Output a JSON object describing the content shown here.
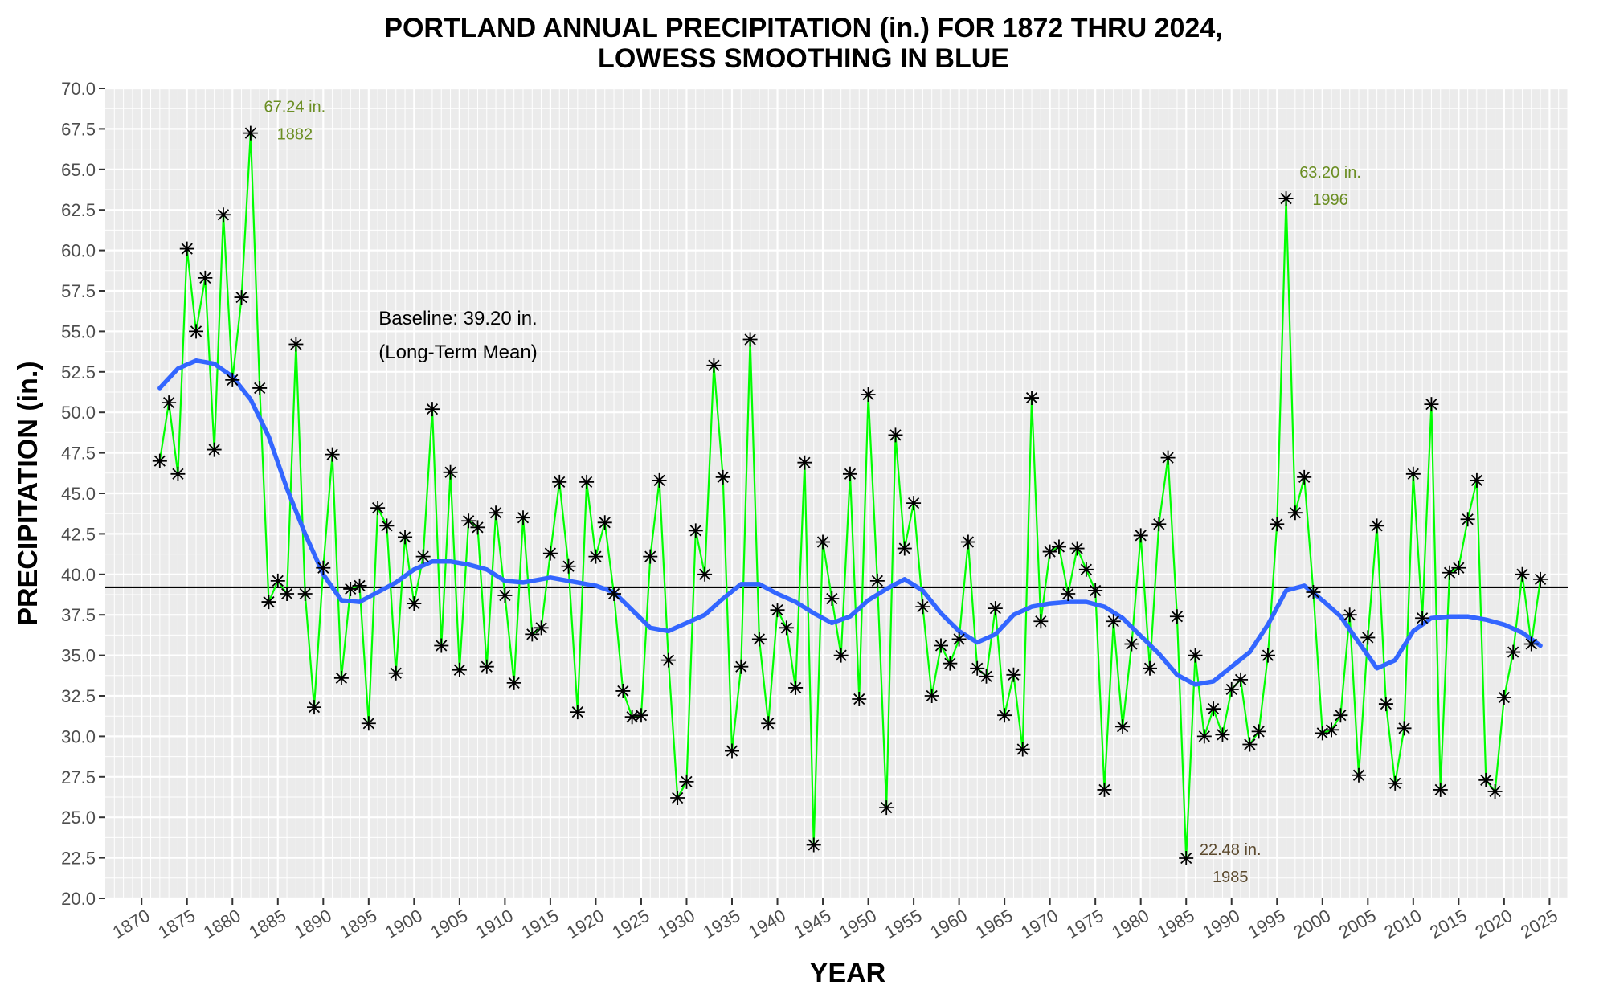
{
  "chart_data": {
    "type": "line",
    "title_lines": [
      "PORTLAND ANNUAL PRECIPITATION (in.) FOR 1872 THRU 2024,",
      "LOWESS SMOOTHING IN BLUE"
    ],
    "xlabel": "YEAR",
    "ylabel": "PRECIPITATION (in.)",
    "xlim": [
      1866,
      2027
    ],
    "ylim": [
      20,
      70
    ],
    "x_ticks": [
      1870,
      1875,
      1880,
      1885,
      1890,
      1895,
      1900,
      1905,
      1910,
      1915,
      1920,
      1925,
      1930,
      1935,
      1940,
      1945,
      1950,
      1955,
      1960,
      1965,
      1970,
      1975,
      1980,
      1985,
      1990,
      1995,
      2000,
      2005,
      2010,
      2015,
      2020,
      2025
    ],
    "y_ticks": [
      "20.0",
      "22.5",
      "25.0",
      "27.5",
      "30.0",
      "32.5",
      "35.0",
      "37.5",
      "40.0",
      "42.5",
      "45.0",
      "47.5",
      "50.0",
      "52.5",
      "55.0",
      "57.5",
      "60.0",
      "62.5",
      "65.0",
      "67.5",
      "70.0"
    ],
    "grid": true,
    "colors": {
      "panel": "#ebebeb",
      "grid": "#ffffff",
      "series_line": "#00ff00",
      "markers": "#000000",
      "lowess": "#3366ff",
      "baseline": "#000000",
      "annot_high": "#6b8e23",
      "annot_low": "#5c4a2e"
    },
    "series": [
      {
        "name": "Annual precipitation",
        "x": [
          1872,
          1873,
          1874,
          1875,
          1876,
          1877,
          1878,
          1879,
          1880,
          1881,
          1882,
          1883,
          1884,
          1885,
          1886,
          1887,
          1888,
          1889,
          1890,
          1891,
          1892,
          1893,
          1894,
          1895,
          1896,
          1897,
          1898,
          1899,
          1900,
          1901,
          1902,
          1903,
          1904,
          1905,
          1906,
          1907,
          1908,
          1909,
          1910,
          1911,
          1912,
          1913,
          1914,
          1915,
          1916,
          1917,
          1918,
          1919,
          1920,
          1921,
          1922,
          1923,
          1924,
          1925,
          1926,
          1927,
          1928,
          1929,
          1930,
          1931,
          1932,
          1933,
          1934,
          1935,
          1936,
          1937,
          1938,
          1939,
          1940,
          1941,
          1942,
          1943,
          1944,
          1945,
          1946,
          1947,
          1948,
          1949,
          1950,
          1951,
          1952,
          1953,
          1954,
          1955,
          1956,
          1957,
          1958,
          1959,
          1960,
          1961,
          1962,
          1963,
          1964,
          1965,
          1966,
          1967,
          1968,
          1969,
          1970,
          1971,
          1972,
          1973,
          1974,
          1975,
          1976,
          1977,
          1978,
          1979,
          1980,
          1981,
          1982,
          1983,
          1984,
          1985,
          1986,
          1987,
          1988,
          1989,
          1990,
          1991,
          1992,
          1993,
          1994,
          1995,
          1996,
          1997,
          1998,
          1999,
          2000,
          2001,
          2002,
          2003,
          2004,
          2005,
          2006,
          2007,
          2008,
          2009,
          2010,
          2011,
          2012,
          2013,
          2014,
          2015,
          2016,
          2017,
          2018,
          2019,
          2020,
          2021,
          2022,
          2023,
          2024
        ],
        "values": [
          47.0,
          50.6,
          46.2,
          60.1,
          55.0,
          58.3,
          47.7,
          62.2,
          52.0,
          57.1,
          67.24,
          51.5,
          38.3,
          39.6,
          38.8,
          54.2,
          38.8,
          31.8,
          40.4,
          47.4,
          33.6,
          39.1,
          39.3,
          30.8,
          44.1,
          43.0,
          33.9,
          42.3,
          38.2,
          41.1,
          50.2,
          35.6,
          46.3,
          34.1,
          43.3,
          42.9,
          34.3,
          43.8,
          38.7,
          33.3,
          43.5,
          36.3,
          36.7,
          41.3,
          45.7,
          40.5,
          31.5,
          45.7,
          41.1,
          43.2,
          38.8,
          32.8,
          31.2,
          31.3,
          41.1,
          45.8,
          34.7,
          26.2,
          27.2,
          42.7,
          40.0,
          52.9,
          46.0,
          29.1,
          34.3,
          54.5,
          36.0,
          30.8,
          37.8,
          36.7,
          33.0,
          46.9,
          23.3,
          42.0,
          38.5,
          35.0,
          46.2,
          32.3,
          51.1,
          39.6,
          25.6,
          48.6,
          41.6,
          44.4,
          38.0,
          32.5,
          35.6,
          34.5,
          36.0,
          42.0,
          34.2,
          33.7,
          37.9,
          31.3,
          33.8,
          29.2,
          50.9,
          37.1,
          41.4,
          41.7,
          38.8,
          41.6,
          40.3,
          39.0,
          26.7,
          37.1,
          30.6,
          35.7,
          42.4,
          34.2,
          43.1,
          47.2,
          37.4,
          22.48,
          35.0,
          30.0,
          31.7,
          30.1,
          32.9,
          33.5,
          29.5,
          30.3,
          35.0,
          43.1,
          63.2,
          43.8,
          46.0,
          38.9,
          30.2,
          30.4,
          31.3,
          37.5,
          27.6,
          36.1,
          43.0,
          32.0,
          27.1,
          30.5,
          46.2,
          37.3,
          50.5,
          26.7,
          40.1,
          40.4,
          43.4,
          45.8,
          27.3,
          26.6,
          32.4,
          35.2,
          40.0,
          35.7,
          39.7
        ]
      },
      {
        "name": "LOWESS smoothing",
        "x": [
          1872,
          1874,
          1876,
          1878,
          1880,
          1882,
          1884,
          1886,
          1888,
          1890,
          1892,
          1894,
          1896,
          1898,
          1900,
          1902,
          1904,
          1906,
          1908,
          1910,
          1912,
          1915,
          1918,
          1920,
          1922,
          1924,
          1926,
          1928,
          1930,
          1932,
          1934,
          1936,
          1938,
          1940,
          1942,
          1944,
          1946,
          1948,
          1950,
          1952,
          1954,
          1956,
          1958,
          1960,
          1962,
          1964,
          1966,
          1968,
          1970,
          1972,
          1974,
          1976,
          1978,
          1980,
          1982,
          1984,
          1986,
          1988,
          1990,
          1992,
          1994,
          1996,
          1998,
          2000,
          2002,
          2004,
          2006,
          2008,
          2010,
          2012,
          2014,
          2016,
          2018,
          2020,
          2022,
          2024
        ],
        "values": [
          51.5,
          52.7,
          53.2,
          53.0,
          52.2,
          50.8,
          48.5,
          45.3,
          42.5,
          40.0,
          38.4,
          38.3,
          38.9,
          39.5,
          40.3,
          40.8,
          40.8,
          40.6,
          40.3,
          39.6,
          39.5,
          39.8,
          39.5,
          39.3,
          38.9,
          37.8,
          36.7,
          36.5,
          37.0,
          37.5,
          38.5,
          39.4,
          39.4,
          38.8,
          38.3,
          37.6,
          37.0,
          37.4,
          38.4,
          39.1,
          39.7,
          39.0,
          37.6,
          36.5,
          35.8,
          36.3,
          37.5,
          38.0,
          38.2,
          38.3,
          38.3,
          38.0,
          37.3,
          36.2,
          35.1,
          33.8,
          33.2,
          33.4,
          34.3,
          35.2,
          36.9,
          39.0,
          39.3,
          38.4,
          37.4,
          35.8,
          34.2,
          34.7,
          36.5,
          37.3,
          37.4,
          37.4,
          37.2,
          36.9,
          36.4,
          35.6
        ]
      }
    ],
    "baseline": {
      "value": 39.2,
      "label_lines": [
        "Baseline: 39.20 in.",
        "(Long-Term Mean)"
      ]
    },
    "annotations": [
      {
        "year": 1882,
        "value": 67.24,
        "lines": [
          "67.24 in.",
          "1882"
        ],
        "kind": "high"
      },
      {
        "year": 1996,
        "value": 63.2,
        "lines": [
          "63.20 in.",
          "1996"
        ],
        "kind": "high"
      },
      {
        "year": 1985,
        "value": 22.48,
        "lines": [
          "22.48 in.",
          "1985"
        ],
        "kind": "low"
      }
    ]
  }
}
